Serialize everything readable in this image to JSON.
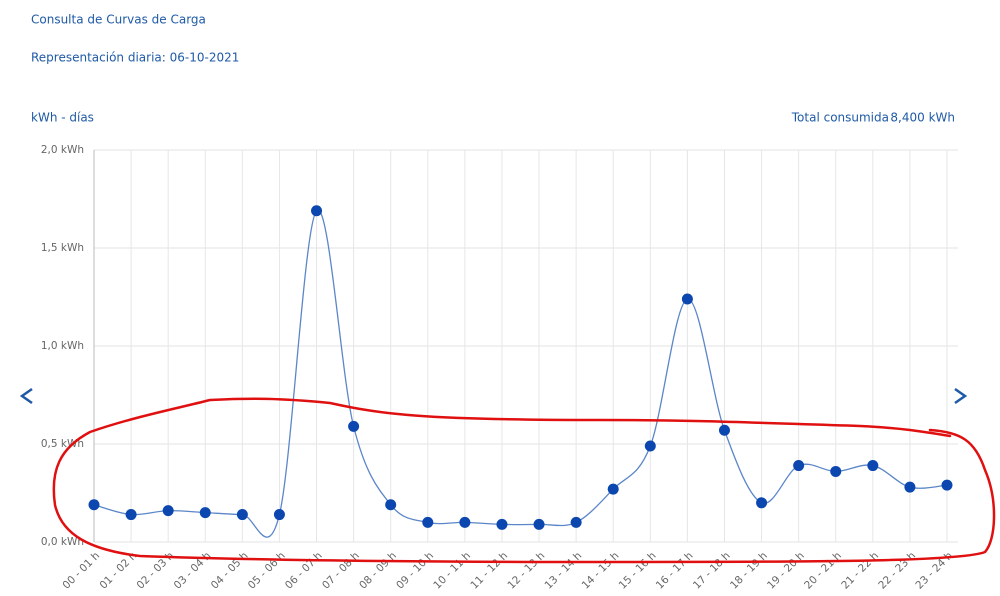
{
  "chart_data": {
    "type": "line",
    "title": "Consulta de Curvas de Carga",
    "subtitle": "Representación diaria: 06-10-2021",
    "y_axis_label": "kWh - días",
    "total_label": "Total consumida",
    "total_value": "8,400 kWh",
    "categories": [
      "00 - 01 h",
      "01 - 02 h",
      "02 - 03 h",
      "03 - 04 h",
      "04 - 05 h",
      "05 - 06 h",
      "06 - 07 h",
      "07 - 08 h",
      "08 - 09 h",
      "09 - 10 h",
      "10 - 11 h",
      "11 - 12 h",
      "12 - 13 h",
      "13 - 14 h",
      "14 - 15 h",
      "15 - 16 h",
      "16 - 17 h",
      "17 - 18 h",
      "18 - 19 h",
      "19 - 20 h",
      "20 - 21 h",
      "21 - 22 h",
      "22 - 23 h",
      "23 - 24 h"
    ],
    "series": [
      {
        "color": "#0c47b0",
        "values": [
          0.19,
          0.14,
          0.16,
          0.15,
          0.14,
          0.14,
          1.69,
          0.59,
          0.19,
          0.1,
          0.1,
          0.09,
          0.09,
          0.1,
          0.27,
          0.49,
          1.24,
          0.57,
          0.2,
          0.39,
          0.36,
          0.39,
          0.28,
          0.29
        ]
      }
    ],
    "ylim": [
      0,
      2
    ],
    "yticks": [
      {
        "value": 0,
        "label": "0,0 kWh"
      },
      {
        "value": 0.5,
        "label": "0,5 kWh"
      },
      {
        "value": 1,
        "label": "1,0 kWh"
      },
      {
        "value": 1.5,
        "label": "1,5 kWh"
      },
      {
        "value": 2,
        "label": "2,0 kWh"
      }
    ],
    "grid": true
  }
}
